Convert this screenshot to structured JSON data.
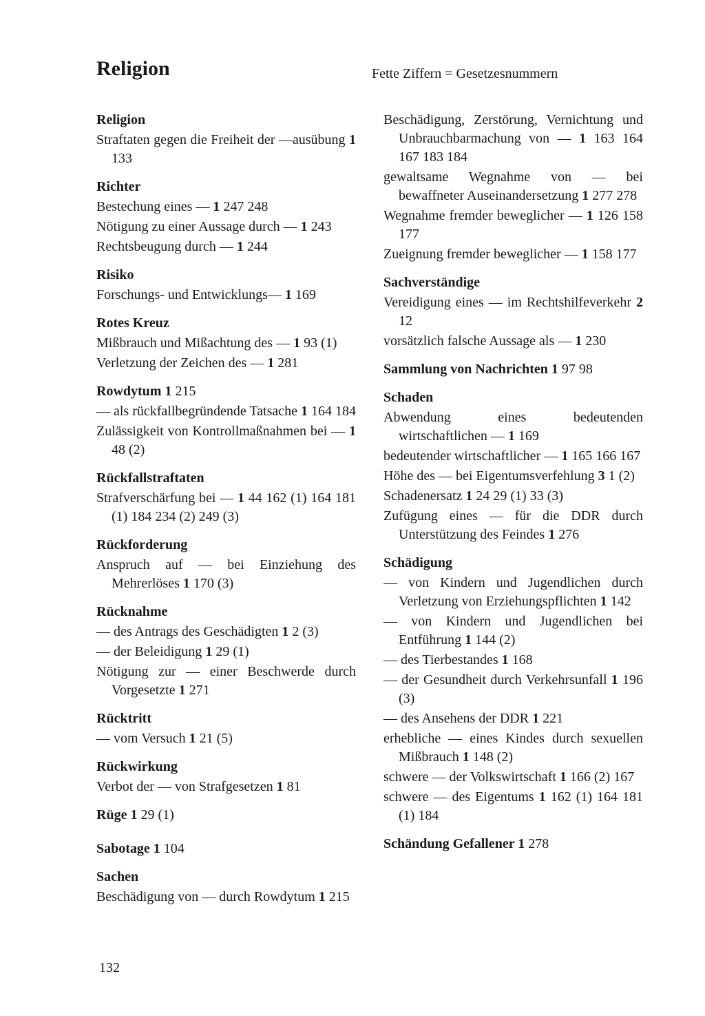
{
  "page_title": "Religion",
  "header_note": "Fette Ziffern = Gesetzesnummern",
  "page_number": "132",
  "left_column": [
    {
      "head": "Religion",
      "lines": [
        {
          "t": "Straftaten gegen die Freiheit der —ausübung ",
          "law": "1",
          "rest": " 133"
        }
      ]
    },
    {
      "head": "Richter",
      "lines": [
        {
          "t": "Bestechung eines — ",
          "law": "1",
          "rest": " 247 248"
        },
        {
          "t": "Nötigung zu einer Aussage durch — ",
          "law": "1",
          "rest": " 243"
        },
        {
          "t": "Rechtsbeugung durch — ",
          "law": "1",
          "rest": " 244"
        }
      ]
    },
    {
      "head": "Risiko",
      "lines": [
        {
          "t": "Forschungs- und Entwicklungs— ",
          "law": "1",
          "rest": " 169"
        }
      ]
    },
    {
      "head": "Rotes Kreuz",
      "lines": [
        {
          "t": "Mißbrauch und Mißachtung des — ",
          "law": "1",
          "rest": " 93 (1)"
        },
        {
          "t": "Verletzung der Zeichen des — ",
          "law": "1",
          "rest": " 281"
        }
      ]
    },
    {
      "inline_head": "Rowdytum",
      "inline_law": "1",
      "inline_rest": " 215",
      "lines": [
        {
          "t": "— als rückfallbegründende Tatsache ",
          "law": "1",
          "rest": " 164 184"
        },
        {
          "t": "Zulässigkeit von Kontrollmaßnahmen bei — ",
          "law": "1",
          "rest": " 48 (2)"
        }
      ]
    },
    {
      "head": "Rückfallstraftaten",
      "lines": [
        {
          "t": "Strafverschärfung bei — ",
          "law": "1",
          "rest": " 44 162 (1) 164 181 (1) 184 234 (2) 249 (3)"
        }
      ]
    },
    {
      "head": "Rückforderung",
      "lines": [
        {
          "t": "Anspruch auf — bei Einziehung des Mehrerlöses ",
          "law": "1",
          "rest": " 170 (3)"
        }
      ]
    },
    {
      "head": "Rücknahme",
      "lines": [
        {
          "t": "— des Antrags des Geschädigten ",
          "law": "1",
          "rest": " 2 (3)"
        },
        {
          "t": "— der Beleidigung ",
          "law": "1",
          "rest": " 29 (1)"
        },
        {
          "t": "Nötigung zur — einer Beschwerde durch Vorgesetzte ",
          "law": "1",
          "rest": " 271"
        }
      ]
    },
    {
      "head": "Rücktritt",
      "lines": [
        {
          "t": "— vom Versuch ",
          "law": "1",
          "rest": " 21 (5)"
        }
      ]
    },
    {
      "head": "Rückwirkung",
      "lines": [
        {
          "t": "Verbot der — von Strafgesetzen ",
          "law": "1",
          "rest": " 81"
        }
      ]
    },
    {
      "inline_head": "Rüge",
      "inline_law": "1",
      "inline_rest": " 29 (1)",
      "lines": []
    },
    {
      "inline_head": "Sabotage",
      "inline_law": "1",
      "inline_rest": " 104",
      "lines": [],
      "extra_top": true
    },
    {
      "head": "Sachen",
      "lines": [
        {
          "t": "Beschädigung von — durch Rowdytum ",
          "law": "1",
          "rest": " 215"
        }
      ]
    }
  ],
  "right_column": [
    {
      "continuation": true,
      "lines": [
        {
          "t": "Beschädigung, Zerstörung, Vernichtung und Unbrauchbarmachung von — ",
          "law": "1",
          "rest": " 163 164 167 183 184"
        },
        {
          "t": "gewaltsame Wegnahme von — bei bewaffneter Auseinandersetzung ",
          "law": "1",
          "rest": " 277 278"
        },
        {
          "t": "Wegnahme fremder beweglicher — ",
          "law": "1",
          "rest": " 126 158 177"
        },
        {
          "t": "Zueignung fremder beweglicher — ",
          "law": "1",
          "rest": " 158 177"
        }
      ]
    },
    {
      "head": "Sachverständige",
      "lines": [
        {
          "t": "Vereidigung eines — im Rechtshilfeverkehr ",
          "law": "2",
          "rest": " 12"
        },
        {
          "t": "vorsätzlich falsche Aussage als — ",
          "law": "1",
          "rest": " 230"
        }
      ]
    },
    {
      "inline_head": "Sammlung von Nachrichten",
      "inline_law": "1",
      "inline_rest": " 97 98",
      "lines": []
    },
    {
      "head": "Schaden",
      "lines": [
        {
          "t": "Abwendung eines bedeutenden wirtschaftlichen — ",
          "law": "1",
          "rest": " 169"
        },
        {
          "t": "bedeutender wirtschaftlicher — ",
          "law": "1",
          "rest": " 165 166 167"
        },
        {
          "t": "Höhe des — bei Eigentumsverfehlung ",
          "law": "3",
          "rest": " 1 (2)"
        },
        {
          "t": "Schadenersatz ",
          "law": "1",
          "rest": " 24 29 (1) 33 (3)"
        },
        {
          "t": "Zufügung eines — für die DDR durch Unterstützung des Feindes ",
          "law": "1",
          "rest": " 276"
        }
      ]
    },
    {
      "head": "Schädigung",
      "lines": [
        {
          "t": "— von Kindern und Jugendlichen durch Verletzung von Erziehungspflichten ",
          "law": "1",
          "rest": " 142"
        },
        {
          "t": "— von Kindern und Jugendlichen bei Entführung ",
          "law": "1",
          "rest": " 144 (2)"
        },
        {
          "t": "— des Tierbestandes ",
          "law": "1",
          "rest": " 168"
        },
        {
          "t": "— der Gesundheit durch Verkehrsunfall ",
          "law": "1",
          "rest": " 196 (3)"
        },
        {
          "t": "— des Ansehens der DDR ",
          "law": "1",
          "rest": " 221"
        },
        {
          "t": "erhebliche — eines Kindes durch sexuellen Mißbrauch ",
          "law": "1",
          "rest": " 148 (2)"
        },
        {
          "t": "schwere — der Volkswirtschaft ",
          "law": "1",
          "rest": " 166 (2) 167"
        },
        {
          "t": "schwere — des Eigentums ",
          "law": "1",
          "rest": " 162 (1) 164 181 (1) 184"
        }
      ]
    },
    {
      "inline_head": "Schändung Gefallener",
      "inline_law": "1",
      "inline_rest": " 278",
      "lines": []
    }
  ]
}
